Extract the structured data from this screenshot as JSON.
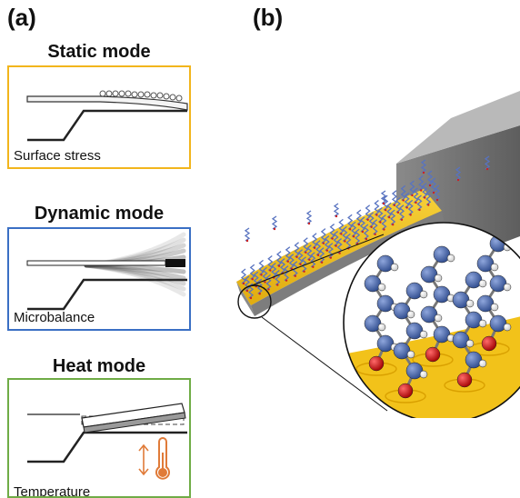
{
  "panel_a": {
    "label": "(a)",
    "static": {
      "title": "Static mode",
      "caption": "Surface stress",
      "color": "#f2b51c"
    },
    "dynamic": {
      "title": "Dynamic mode",
      "caption": "Microbalance",
      "color": "#3a6fc4"
    },
    "heat": {
      "title": "Heat mode",
      "caption": "Temperature",
      "color": "#6fac46",
      "icon_color": "#e07b39"
    }
  },
  "panel_b": {
    "label": "(b)",
    "colors": {
      "cantilever": "#f0c419",
      "substrate": "#6e6e6e",
      "atom_carbon": "#3d5fa8",
      "atom_oxygen": "#cc1111",
      "atom_hydrogen": "#f2f2f2"
    }
  }
}
